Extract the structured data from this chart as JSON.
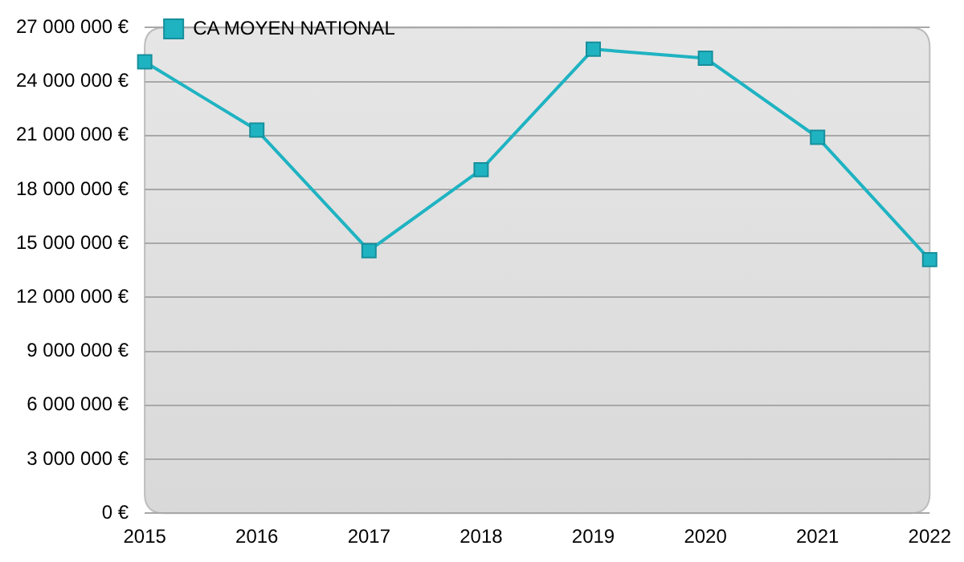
{
  "chart_data": {
    "type": "line",
    "categories": [
      "2015",
      "2016",
      "2017",
      "2018",
      "2019",
      "2020",
      "2021",
      "2022"
    ],
    "series": [
      {
        "name": "CA MOYEN NATIONAL",
        "color": "#1fb3c2",
        "values": [
          25100000,
          21300000,
          14600000,
          19100000,
          25800000,
          25300000,
          20900000,
          14100000
        ]
      }
    ],
    "ylim": [
      0,
      27000000
    ],
    "yticks": [
      {
        "value": 0,
        "label": "0 €"
      },
      {
        "value": 3000000,
        "label": "3 000 000 €"
      },
      {
        "value": 6000000,
        "label": "6 000 000 €"
      },
      {
        "value": 9000000,
        "label": "9 000 000 €"
      },
      {
        "value": 12000000,
        "label": "12 000 000 €"
      },
      {
        "value": 15000000,
        "label": "15 000 000 €"
      },
      {
        "value": 18000000,
        "label": "18 000 000 €"
      },
      {
        "value": 21000000,
        "label": "21 000 000 €"
      },
      {
        "value": 24000000,
        "label": "24 000 000 €"
      },
      {
        "value": 27000000,
        "label": "27 000 000 €"
      }
    ],
    "grid": "y",
    "legend": "top left",
    "marker": "square",
    "line_style": "solid"
  }
}
